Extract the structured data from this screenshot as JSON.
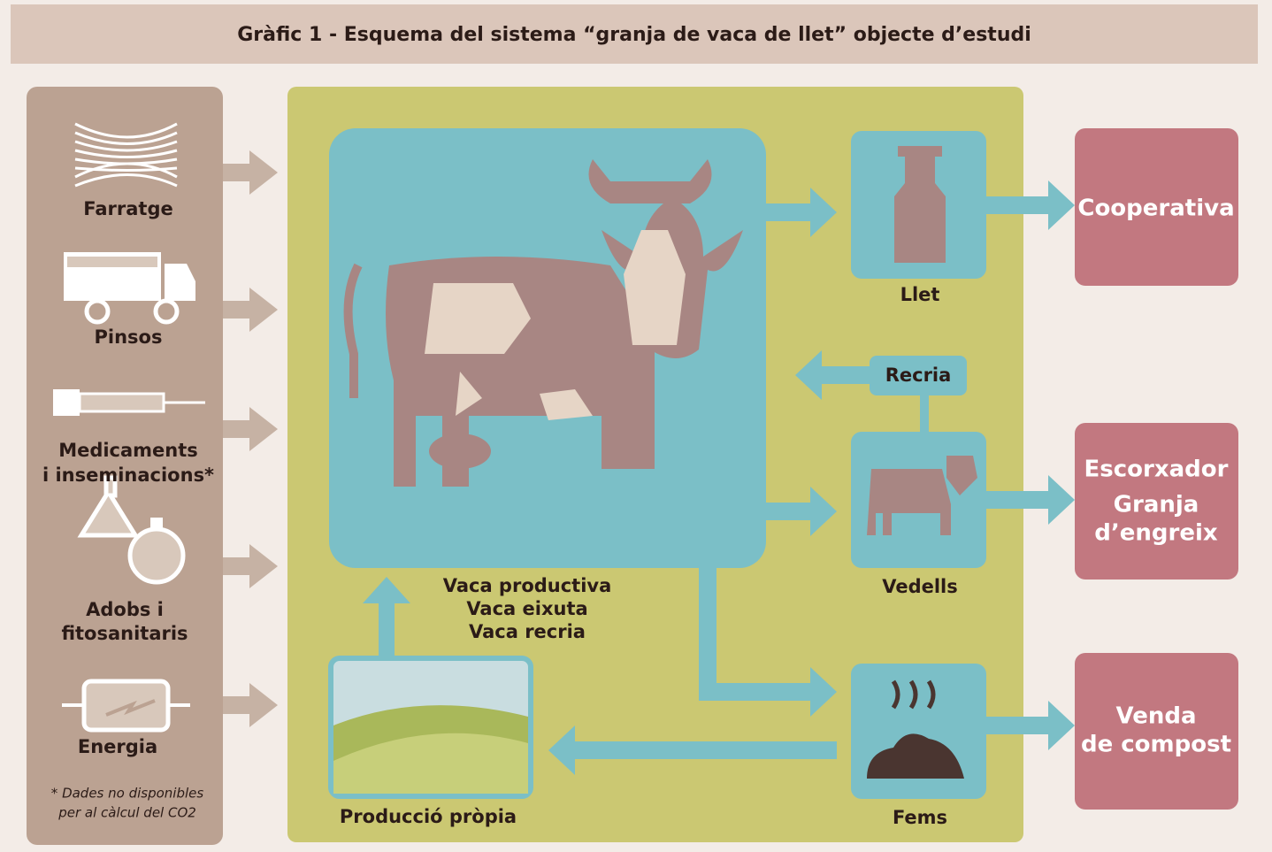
{
  "title": "Gràfic 1 - Esquema del sistema “granja de vaca de llet” objecte d’estudi",
  "inputs": [
    {
      "lines": [
        "Farratge"
      ]
    },
    {
      "lines": [
        "Pinsos"
      ]
    },
    {
      "lines": [
        "Medicaments",
        "i inseminacions*"
      ]
    },
    {
      "lines": [
        "Adobs i",
        "fitosanitaris"
      ]
    },
    {
      "lines": [
        "Energia"
      ]
    }
  ],
  "footnote": [
    "* Dades no disponibles",
    "per al càlcul del CO2"
  ],
  "farm": {
    "cow": [
      "Vaca productiva",
      "Vaca eixuta",
      "Vaca recria"
    ],
    "milk": "Llet",
    "rearing": "Recria",
    "calves": "Vedells",
    "manure": "Fems",
    "own_production": "Producció pròpia"
  },
  "outputs": [
    {
      "lines": [
        "Cooperativa"
      ]
    },
    {
      "lines": [
        "Escorxador",
        "Granja",
        "d’engreix"
      ]
    },
    {
      "lines": [
        "Venda",
        "de compost"
      ]
    }
  ]
}
